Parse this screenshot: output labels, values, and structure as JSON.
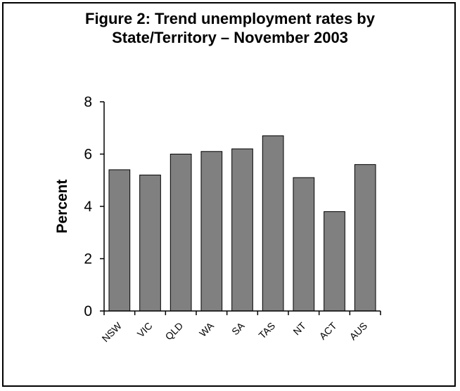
{
  "chart_data": {
    "type": "bar",
    "title_line1": "Figure 2:  Trend unemployment rates by",
    "title_line2": "State/Territory – November 2003",
    "ylabel": "Percent",
    "xlabel": "",
    "categories": [
      "NSW",
      "VIC",
      "QLD",
      "WA",
      "SA",
      "TAS",
      "NT",
      "ACT",
      "AUS"
    ],
    "values": [
      5.4,
      5.2,
      6.0,
      6.1,
      6.2,
      6.7,
      5.1,
      3.8,
      5.6
    ],
    "ylim": [
      0,
      8
    ],
    "yticks": [
      "0",
      "2",
      "4",
      "6",
      "8"
    ],
    "grid": false,
    "legend": "none",
    "bar_color": "#808080"
  }
}
